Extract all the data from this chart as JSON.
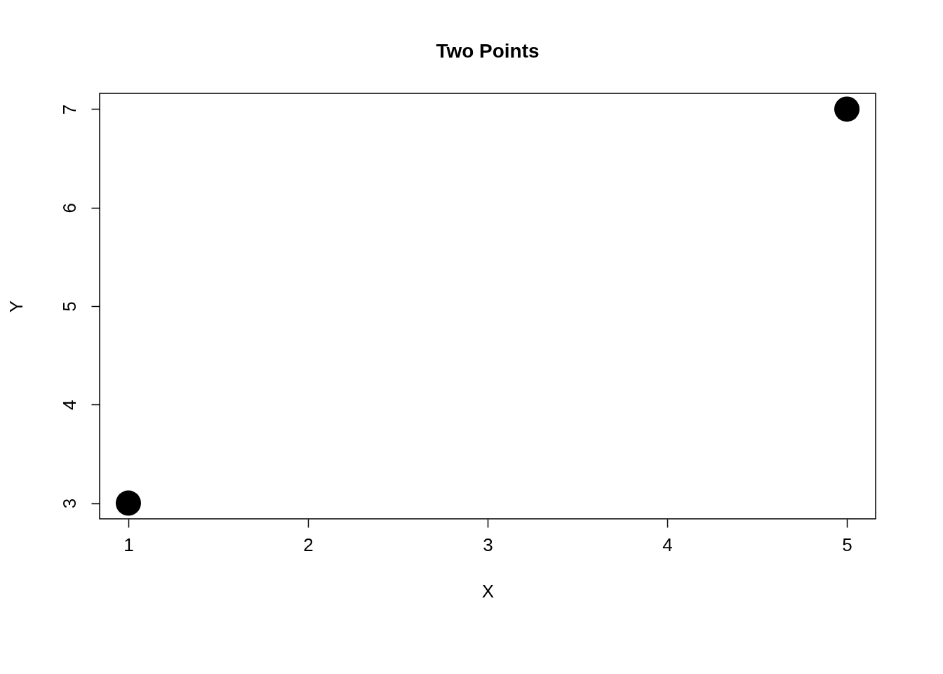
{
  "chart_data": {
    "type": "scatter",
    "title": "Two Points",
    "xlabel": "X",
    "ylabel": "Y",
    "x": [
      1,
      5
    ],
    "series": [
      {
        "color": "#000000",
        "values": [
          3,
          7
        ]
      }
    ],
    "xlim": [
      0.84,
      5.16
    ],
    "ylim": [
      2.84,
      7.16
    ],
    "xticks": [
      1,
      2,
      3,
      4,
      5
    ],
    "yticks": [
      3,
      4,
      5,
      6,
      7
    ],
    "grid": false,
    "marker": "circle"
  }
}
